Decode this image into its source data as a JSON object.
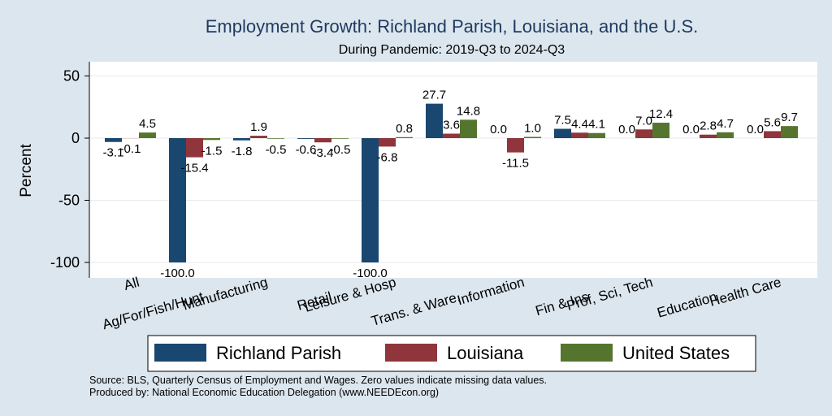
{
  "chart_data": {
    "type": "bar",
    "title": "Employment Growth: Richland Parish, Louisiana, and the U.S.",
    "subtitle": "During Pandemic: 2019-Q3 to 2024-Q3",
    "ylabel": "Percent",
    "ylim": [
      -105,
      60
    ],
    "yticks": [
      50,
      0,
      -50,
      -100
    ],
    "grid": true,
    "legend_position": "bottom",
    "categories": [
      "All",
      "Ag/For/Fish/Hunt",
      "Manufacturing",
      "Retail",
      "Leisure & Hosp",
      "Trans. & Ware.",
      "Information",
      "Fin & Ins",
      "Prof, Sci, Tech",
      "Education",
      "Health Care"
    ],
    "series": [
      {
        "name": "Richland Parish",
        "color": "#1a476f",
        "values": [
          -3.1,
          -100.0,
          -1.8,
          -0.6,
          -100.0,
          27.7,
          0.0,
          7.5,
          0.0,
          0.0,
          0.0
        ]
      },
      {
        "name": "Louisiana",
        "color": "#90353b",
        "values": [
          -0.1,
          -15.4,
          1.9,
          -3.4,
          -6.8,
          3.6,
          -11.5,
          4.4,
          7.0,
          2.8,
          5.6
        ]
      },
      {
        "name": "United States",
        "color": "#55752f",
        "values": [
          4.5,
          -1.5,
          -0.5,
          -0.5,
          0.8,
          14.8,
          1.0,
          4.1,
          12.4,
          4.7,
          9.7
        ]
      }
    ]
  },
  "footer": {
    "source": "Source: BLS, Quarterly Census of Employment and Wages. Zero values indicate missing data values.",
    "produced": "Produced by: National Economic Education Delegation (www.NEEDEcon.org)"
  }
}
